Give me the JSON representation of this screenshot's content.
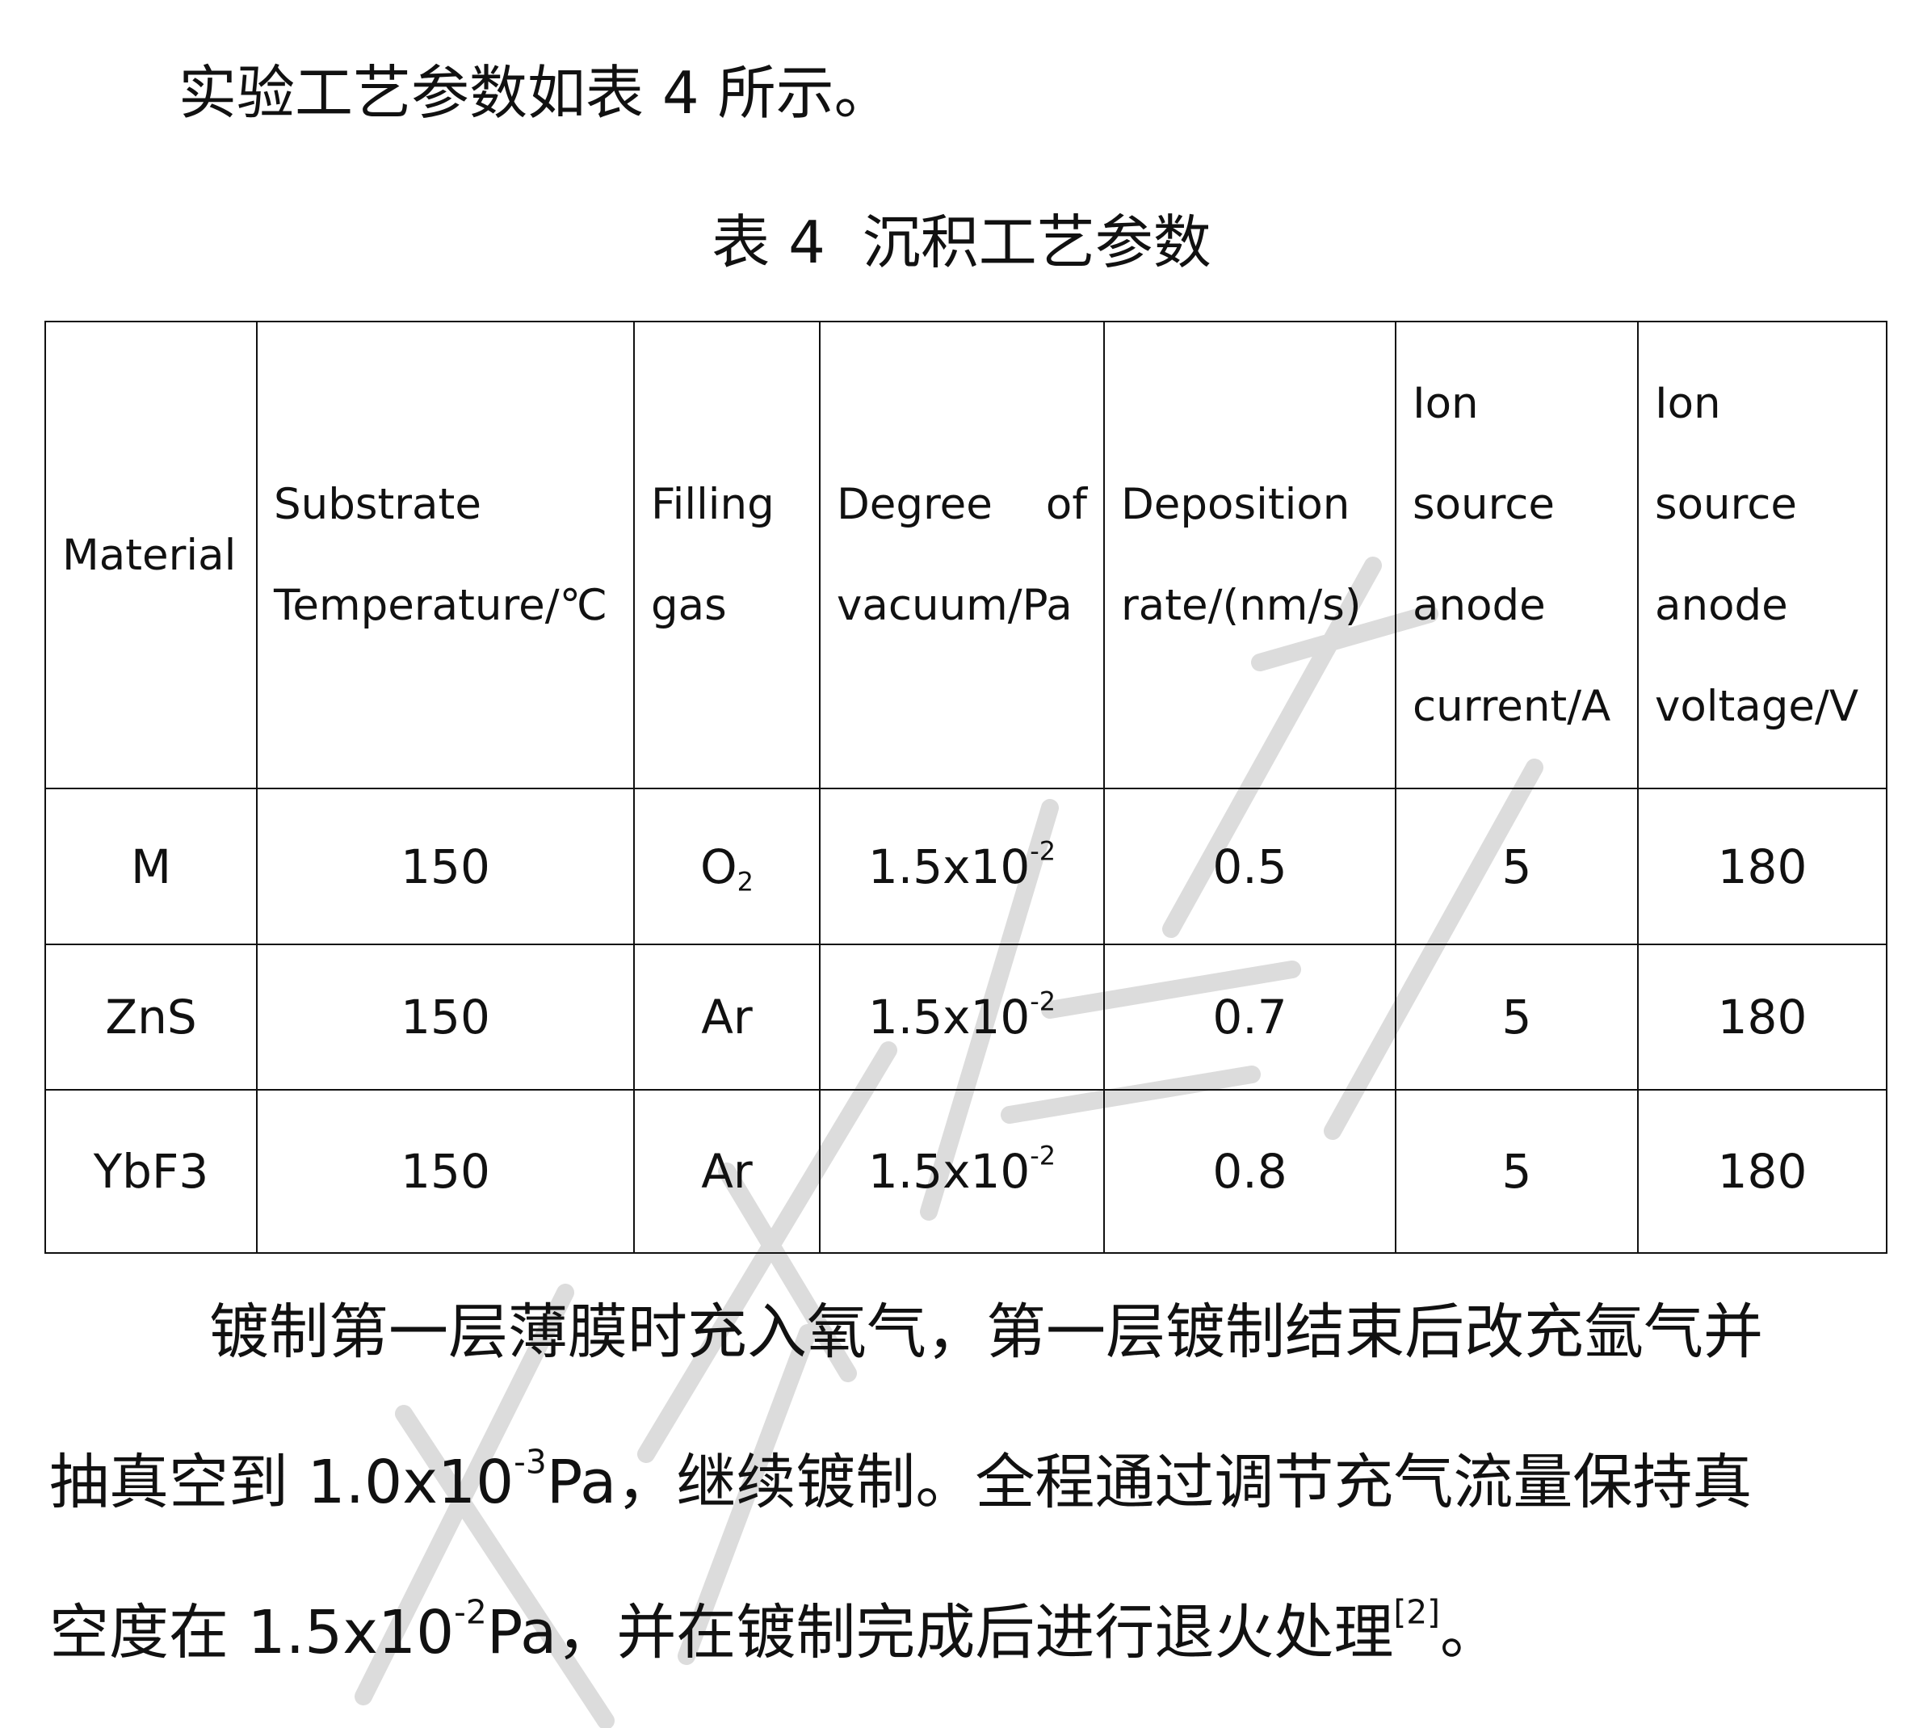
{
  "intro": "实验工艺参数如表 4 所示。",
  "caption": "表 4  沉积工艺参数",
  "table": {
    "headers": [
      [
        "Material"
      ],
      [
        "Substrate",
        "Temperature/℃"
      ],
      [
        "Filling",
        "gas"
      ],
      [
        "Degree of",
        "vacuum/Pa"
      ],
      [
        "Deposition",
        "rate/(nm/s)"
      ],
      [
        "Ion",
        "source",
        "anode",
        "current/A"
      ],
      [
        "Ion",
        "source",
        "anode",
        "voltage/V"
      ]
    ],
    "rows": [
      {
        "material": "M",
        "temp": "150",
        "gas": "O",
        "gas_sub": "2",
        "vac_base": "1.5x10",
        "vac_exp": "-2",
        "rate": "0.5",
        "current": "5",
        "voltage": "180"
      },
      {
        "material": "ZnS",
        "temp": "150",
        "gas": "Ar",
        "gas_sub": "",
        "vac_base": "1.5x10",
        "vac_exp": "-2",
        "rate": "0.7",
        "current": "5",
        "voltage": "180"
      },
      {
        "material": "YbF3",
        "temp": "150",
        "gas": "Ar",
        "gas_sub": "",
        "vac_base": "1.5x10",
        "vac_exp": "-2",
        "rate": "0.8",
        "current": "5",
        "voltage": "180"
      }
    ]
  },
  "paragraph": {
    "line1": "镀制第一层薄膜时充入氧气，第一层镀制结束后改充氩气并",
    "line2a": "抽真空到 1.0x10",
    "line2exp": "-3",
    "line2b": "Pa，继续镀制。全程通过调节充气流量保持真",
    "line3a": "空度在 1.5x10",
    "line3exp": "-2",
    "line3b": "Pa，并在镀制完成后进行退火处理",
    "line3ref": "[2]",
    "line3c": "。"
  },
  "watermark": {
    "color": "#d9d9d9"
  }
}
